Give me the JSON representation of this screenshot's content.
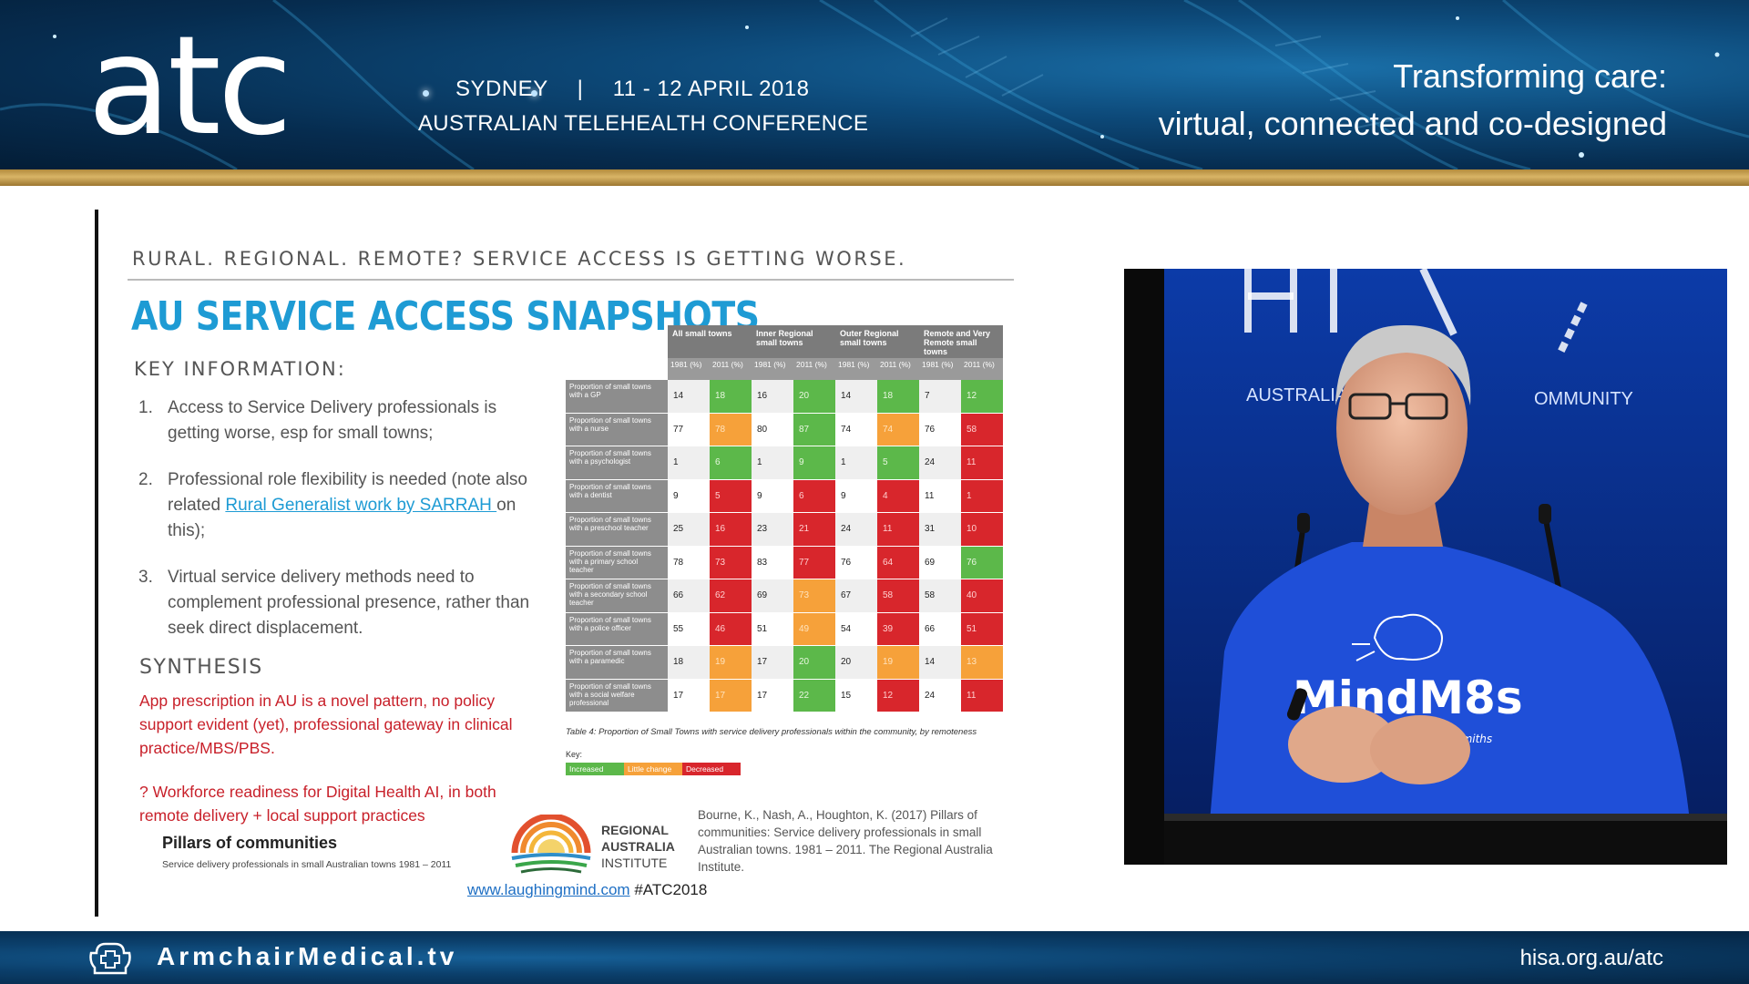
{
  "header": {
    "logo": "atc",
    "location": "SYDNEY",
    "separator": "|",
    "dates": "11 - 12 APRIL 2018",
    "conference": "AUSTRALIAN TELEHEALTH CONFERENCE",
    "tagline_line1": "Transforming care:",
    "tagline_line2": "virtual, connected and co-designed"
  },
  "slide": {
    "subtitle": "RURAL. REGIONAL. REMOTE? SERVICE ACCESS IS GETTING WORSE.",
    "title": "AU SERVICE ACCESS SNAPSHOTS",
    "key_heading": "KEY INFORMATION:",
    "points": [
      {
        "num": "1.",
        "text": "Access to Service Delivery professionals is getting worse, esp for small towns;"
      },
      {
        "num": "2.",
        "text_before": "Professional role flexibility is needed (note also related ",
        "link": "Rural Generalist work by SARRAH ",
        "text_after": "on this);"
      },
      {
        "num": "3.",
        "text": "Virtual service delivery methods need to complement professional presence, rather than seek direct displacement."
      }
    ],
    "synthesis_heading": "SYNTHESIS",
    "synthesis_text": "App prescription in AU is a novel pattern, no policy support evident (yet), professional gateway in clinical practice/MBS/PBS.",
    "workforce_text": "? Workforce readiness for Digital Health AI, in both remote delivery + local support practices",
    "pillars_title": "Pillars of communities",
    "pillars_subtitle": "Service delivery professionals in small Australian towns 1981 – 2011",
    "rai_line1": "REGIONAL",
    "rai_line2": "AUSTRALIA",
    "rai_line3": "INSTITUTE",
    "citation": "Bourne, K., Nash, A., Houghton, K. (2017) Pillars of communities: Service delivery professionals in small Australian towns. 1981 – 2011. The Regional Australia Institute.",
    "footer_link": "www.laughingmind.com",
    "footer_hashtag": " #ATC2018"
  },
  "table": {
    "groups": [
      "All small towns",
      "Inner Regional small towns",
      "Outer Regional small towns",
      "Remote and Very Remote small towns"
    ],
    "subcols": [
      "1981 (%)",
      "2011 (%)"
    ],
    "rows": [
      {
        "label": "Proportion of small towns with a GP",
        "vals": [
          "14",
          "18",
          "16",
          "20",
          "14",
          "18",
          "7",
          "12"
        ],
        "cls": [
          "",
          "inc",
          "",
          "inc",
          "",
          "inc",
          "",
          "inc"
        ]
      },
      {
        "label": "Proportion of small towns with a nurse",
        "vals": [
          "77",
          "78",
          "80",
          "87",
          "74",
          "74",
          "76",
          "58"
        ],
        "cls": [
          "",
          "lit",
          "",
          "inc",
          "",
          "lit",
          "",
          "dec"
        ]
      },
      {
        "label": "Proportion of small towns with a psychologist",
        "vals": [
          "1",
          "6",
          "1",
          "9",
          "1",
          "5",
          "24",
          "11"
        ],
        "cls": [
          "",
          "inc",
          "",
          "inc",
          "",
          "inc",
          "",
          "dec"
        ]
      },
      {
        "label": "Proportion of small towns with a dentist",
        "vals": [
          "9",
          "5",
          "9",
          "6",
          "9",
          "4",
          "11",
          "1"
        ],
        "cls": [
          "",
          "dec",
          "",
          "dec",
          "",
          "dec",
          "",
          "dec"
        ]
      },
      {
        "label": "Proportion of small towns with a preschool teacher",
        "vals": [
          "25",
          "16",
          "23",
          "21",
          "24",
          "11",
          "31",
          "10"
        ],
        "cls": [
          "",
          "dec",
          "",
          "dec",
          "",
          "dec",
          "",
          "dec"
        ]
      },
      {
        "label": "Proportion of small towns with a primary school teacher",
        "vals": [
          "78",
          "73",
          "83",
          "77",
          "76",
          "64",
          "69",
          "76"
        ],
        "cls": [
          "",
          "dec",
          "",
          "dec",
          "",
          "dec",
          "",
          "inc"
        ]
      },
      {
        "label": "Proportion of small towns with a secondary school teacher",
        "vals": [
          "66",
          "62",
          "69",
          "73",
          "67",
          "58",
          "58",
          "40"
        ],
        "cls": [
          "",
          "dec",
          "",
          "lit",
          "",
          "dec",
          "",
          "dec"
        ]
      },
      {
        "label": "Proportion of small towns with a police officer",
        "vals": [
          "55",
          "46",
          "51",
          "49",
          "54",
          "39",
          "66",
          "51"
        ],
        "cls": [
          "",
          "dec",
          "",
          "lit",
          "",
          "dec",
          "",
          "dec"
        ]
      },
      {
        "label": "Proportion of small towns with a paramedic",
        "vals": [
          "18",
          "19",
          "17",
          "20",
          "20",
          "19",
          "14",
          "13"
        ],
        "cls": [
          "",
          "lit",
          "",
          "inc",
          "",
          "lit",
          "",
          "lit"
        ]
      },
      {
        "label": "Proportion of small towns with a social welfare professional",
        "vals": [
          "17",
          "17",
          "17",
          "22",
          "15",
          "12",
          "24",
          "11"
        ],
        "cls": [
          "",
          "lit",
          "",
          "inc",
          "",
          "dec",
          "",
          "dec"
        ]
      }
    ],
    "caption": "Table 4: Proportion of Small Towns with service delivery professionals within the community, by remoteness",
    "key_label": "Key:",
    "key_items": [
      {
        "label": "Increased",
        "color": "#5cb84a"
      },
      {
        "label": "Little change",
        "color": "#f6a13a"
      },
      {
        "label": "Decreased",
        "color": "#d8262c"
      }
    ]
  },
  "video": {
    "backdrop_text": "AUSTRALIA'S D",
    "backdrop_text2": "OMMUNITY",
    "shirt_text": "MindM8s",
    "shirt_subtext": "TherapeuTech Toolsmiths"
  },
  "bottom": {
    "brand": "ArmchairMedical.tv",
    "url": "hisa.org.au/atc"
  },
  "colors": {
    "accent_blue": "#1e9bd4",
    "alert_red": "#c8202a",
    "gold": "#c9a24f"
  }
}
